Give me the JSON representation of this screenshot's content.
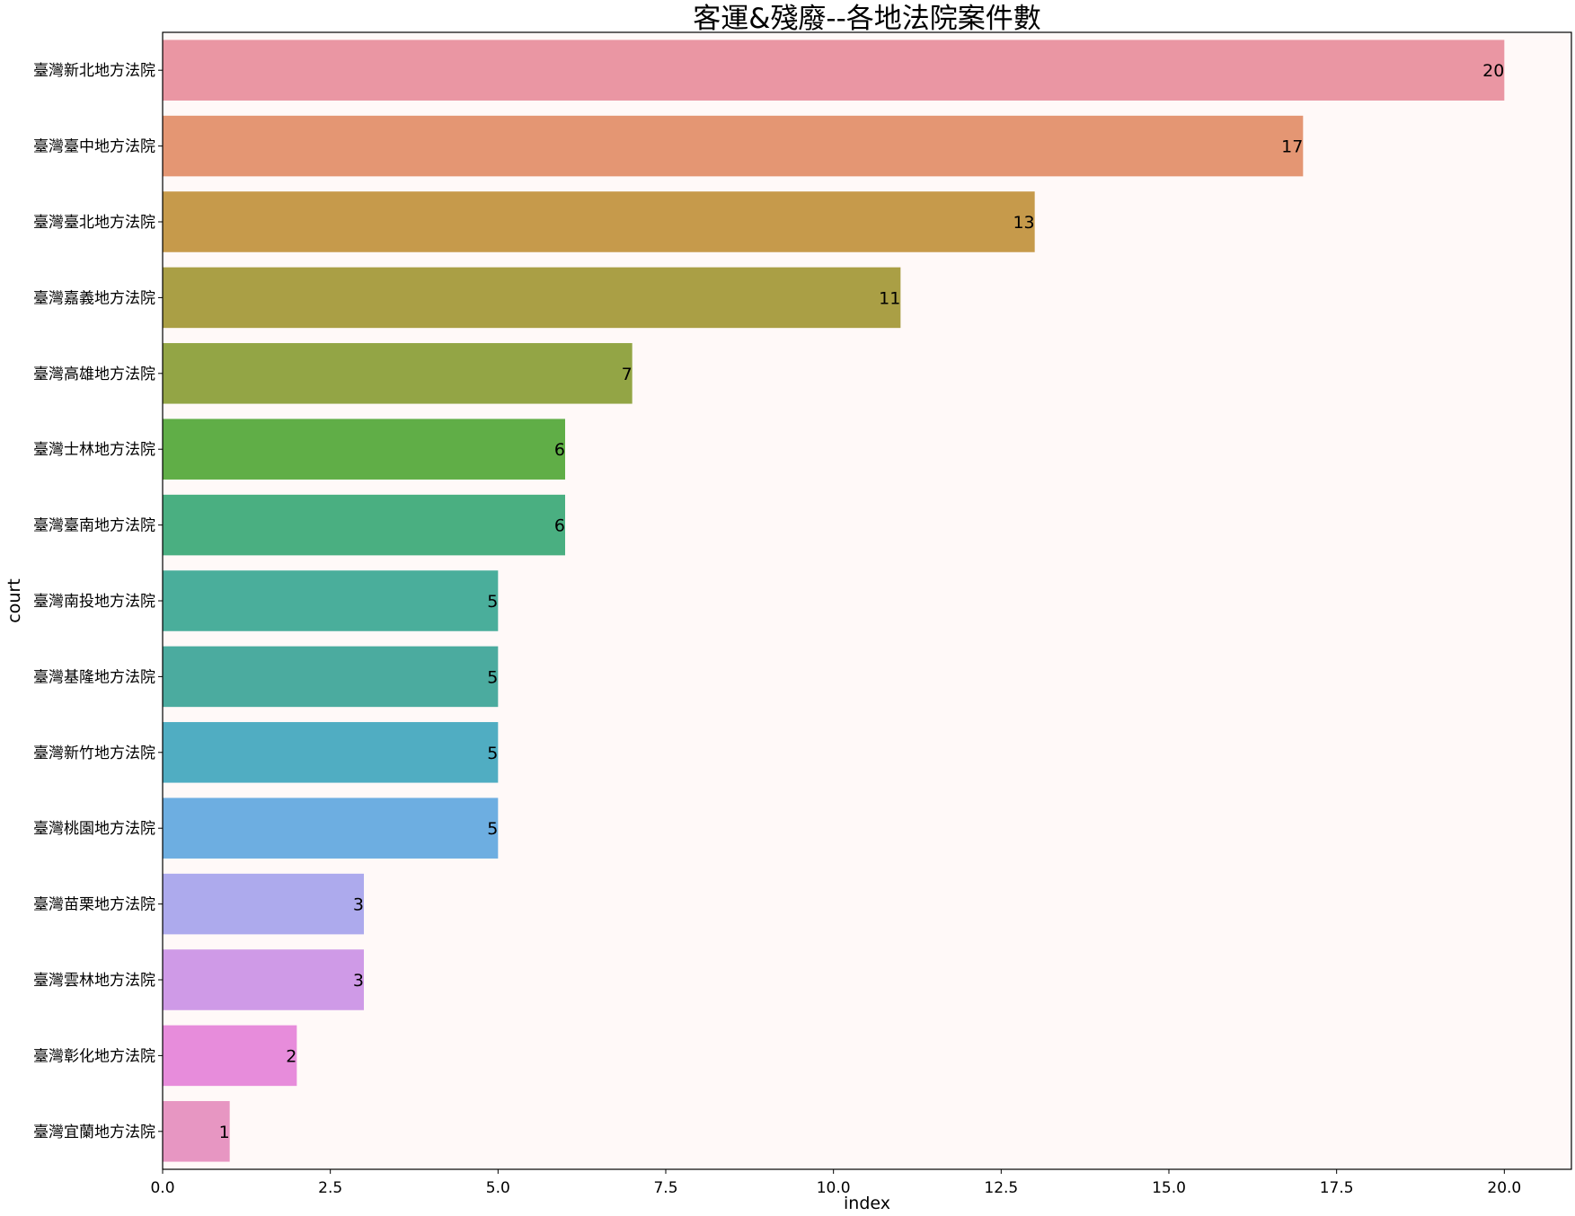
{
  "chart_data": {
    "type": "bar",
    "orientation": "horizontal",
    "title": "客運&殘廢--各地法院案件數",
    "xlabel": "index",
    "ylabel": "court",
    "xlim": [
      0,
      21
    ],
    "xticks": [
      0.0,
      2.5,
      5.0,
      7.5,
      10.0,
      12.5,
      15.0,
      17.5,
      20.0
    ],
    "xtick_labels": [
      "0.0",
      "2.5",
      "5.0",
      "7.5",
      "10.0",
      "12.5",
      "15.0",
      "17.5",
      "20.0"
    ],
    "grid": false,
    "background_color": "#fff9f8",
    "categories": [
      "臺灣新北地方法院",
      "臺灣臺中地方法院",
      "臺灣臺北地方法院",
      "臺灣嘉義地方法院",
      "臺灣高雄地方法院",
      "臺灣士林地方法院",
      "臺灣臺南地方法院",
      "臺灣南投地方法院",
      "臺灣基隆地方法院",
      "臺灣新竹地方法院",
      "臺灣桃園地方法院",
      "臺灣苗栗地方法院",
      "臺灣雲林地方法院",
      "臺灣彰化地方法院",
      "臺灣宜蘭地方法院"
    ],
    "values": [
      20,
      17,
      13,
      11,
      7,
      6,
      6,
      5,
      5,
      5,
      5,
      3,
      3,
      2,
      1
    ],
    "value_labels": [
      "20",
      "17",
      "13",
      "11",
      "7",
      "6",
      "6",
      "5",
      "5",
      "5",
      "5",
      "3",
      "3",
      "2",
      "1"
    ],
    "colors": [
      "#ea96a3",
      "#e49673",
      "#c69a4b",
      "#aa9f45",
      "#93a545",
      "#60ae47",
      "#4aaf81",
      "#4aae9b",
      "#4bab9f",
      "#50adc2",
      "#6daee1",
      "#adaaed",
      "#cf9ae7",
      "#e78cdb",
      "#e796c2"
    ]
  }
}
